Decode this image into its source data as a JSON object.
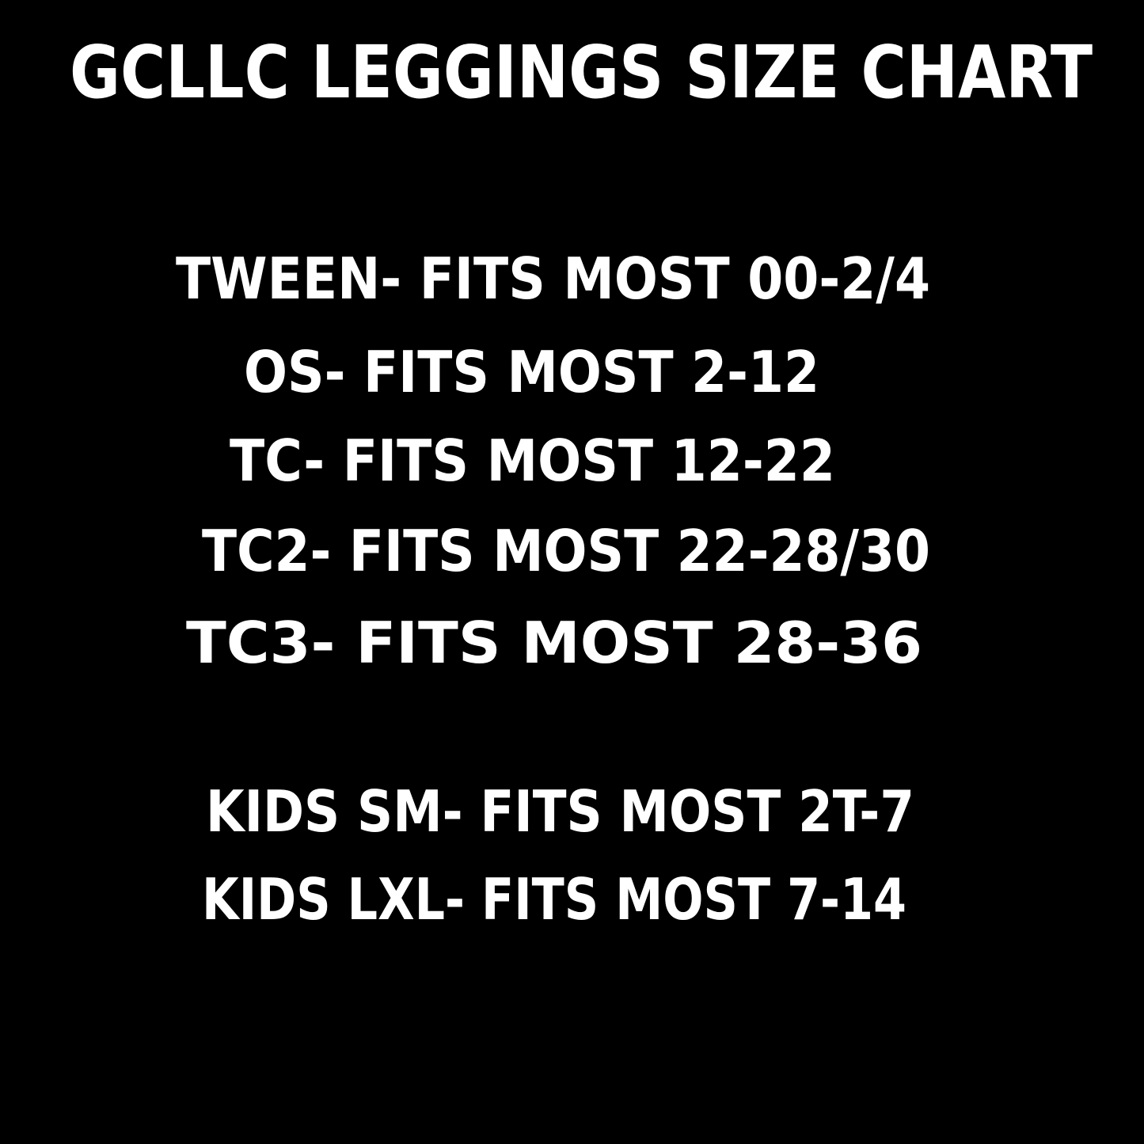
{
  "colors": {
    "background": "#000000",
    "text": "#ffffff"
  },
  "title": "GCLLC LEGGINGS SIZE CHART",
  "sizes": [
    {
      "text": "TWEEN- FITS MOST 00-2/4"
    },
    {
      "text": "OS- FITS MOST 2-12"
    },
    {
      "text": "TC- FITS MOST 12-22"
    },
    {
      "text": "TC2- FITS MOST 22-28/30"
    },
    {
      "text": "TC3- FITS MOST 28-36"
    }
  ],
  "kids_sizes": [
    {
      "text": "KIDS SM- FITS MOST 2T-7"
    },
    {
      "text": "KIDS LXL- FITS MOST 7-14"
    }
  ]
}
